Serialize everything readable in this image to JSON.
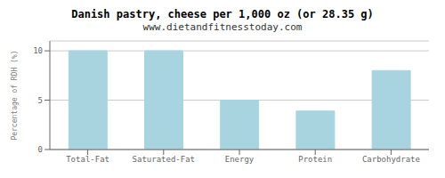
{
  "chart_data": {
    "type": "bar",
    "title": "Danish pastry, cheese per 1,000 oz (or 28.35 g)",
    "subtitle": "www.dietandfitnesstoday.com",
    "categories": [
      "Total-Fat",
      "Saturated-Fat",
      "Energy",
      "Protein",
      "Carbohydrate"
    ],
    "values": [
      10.0,
      10.0,
      5.0,
      3.9,
      8.0
    ],
    "color": "#a8d4e0",
    "ylabel": "Percentage of RDH (%)",
    "ylim": [
      0,
      11
    ],
    "yticks": [
      0,
      5,
      10
    ],
    "grid": true
  }
}
